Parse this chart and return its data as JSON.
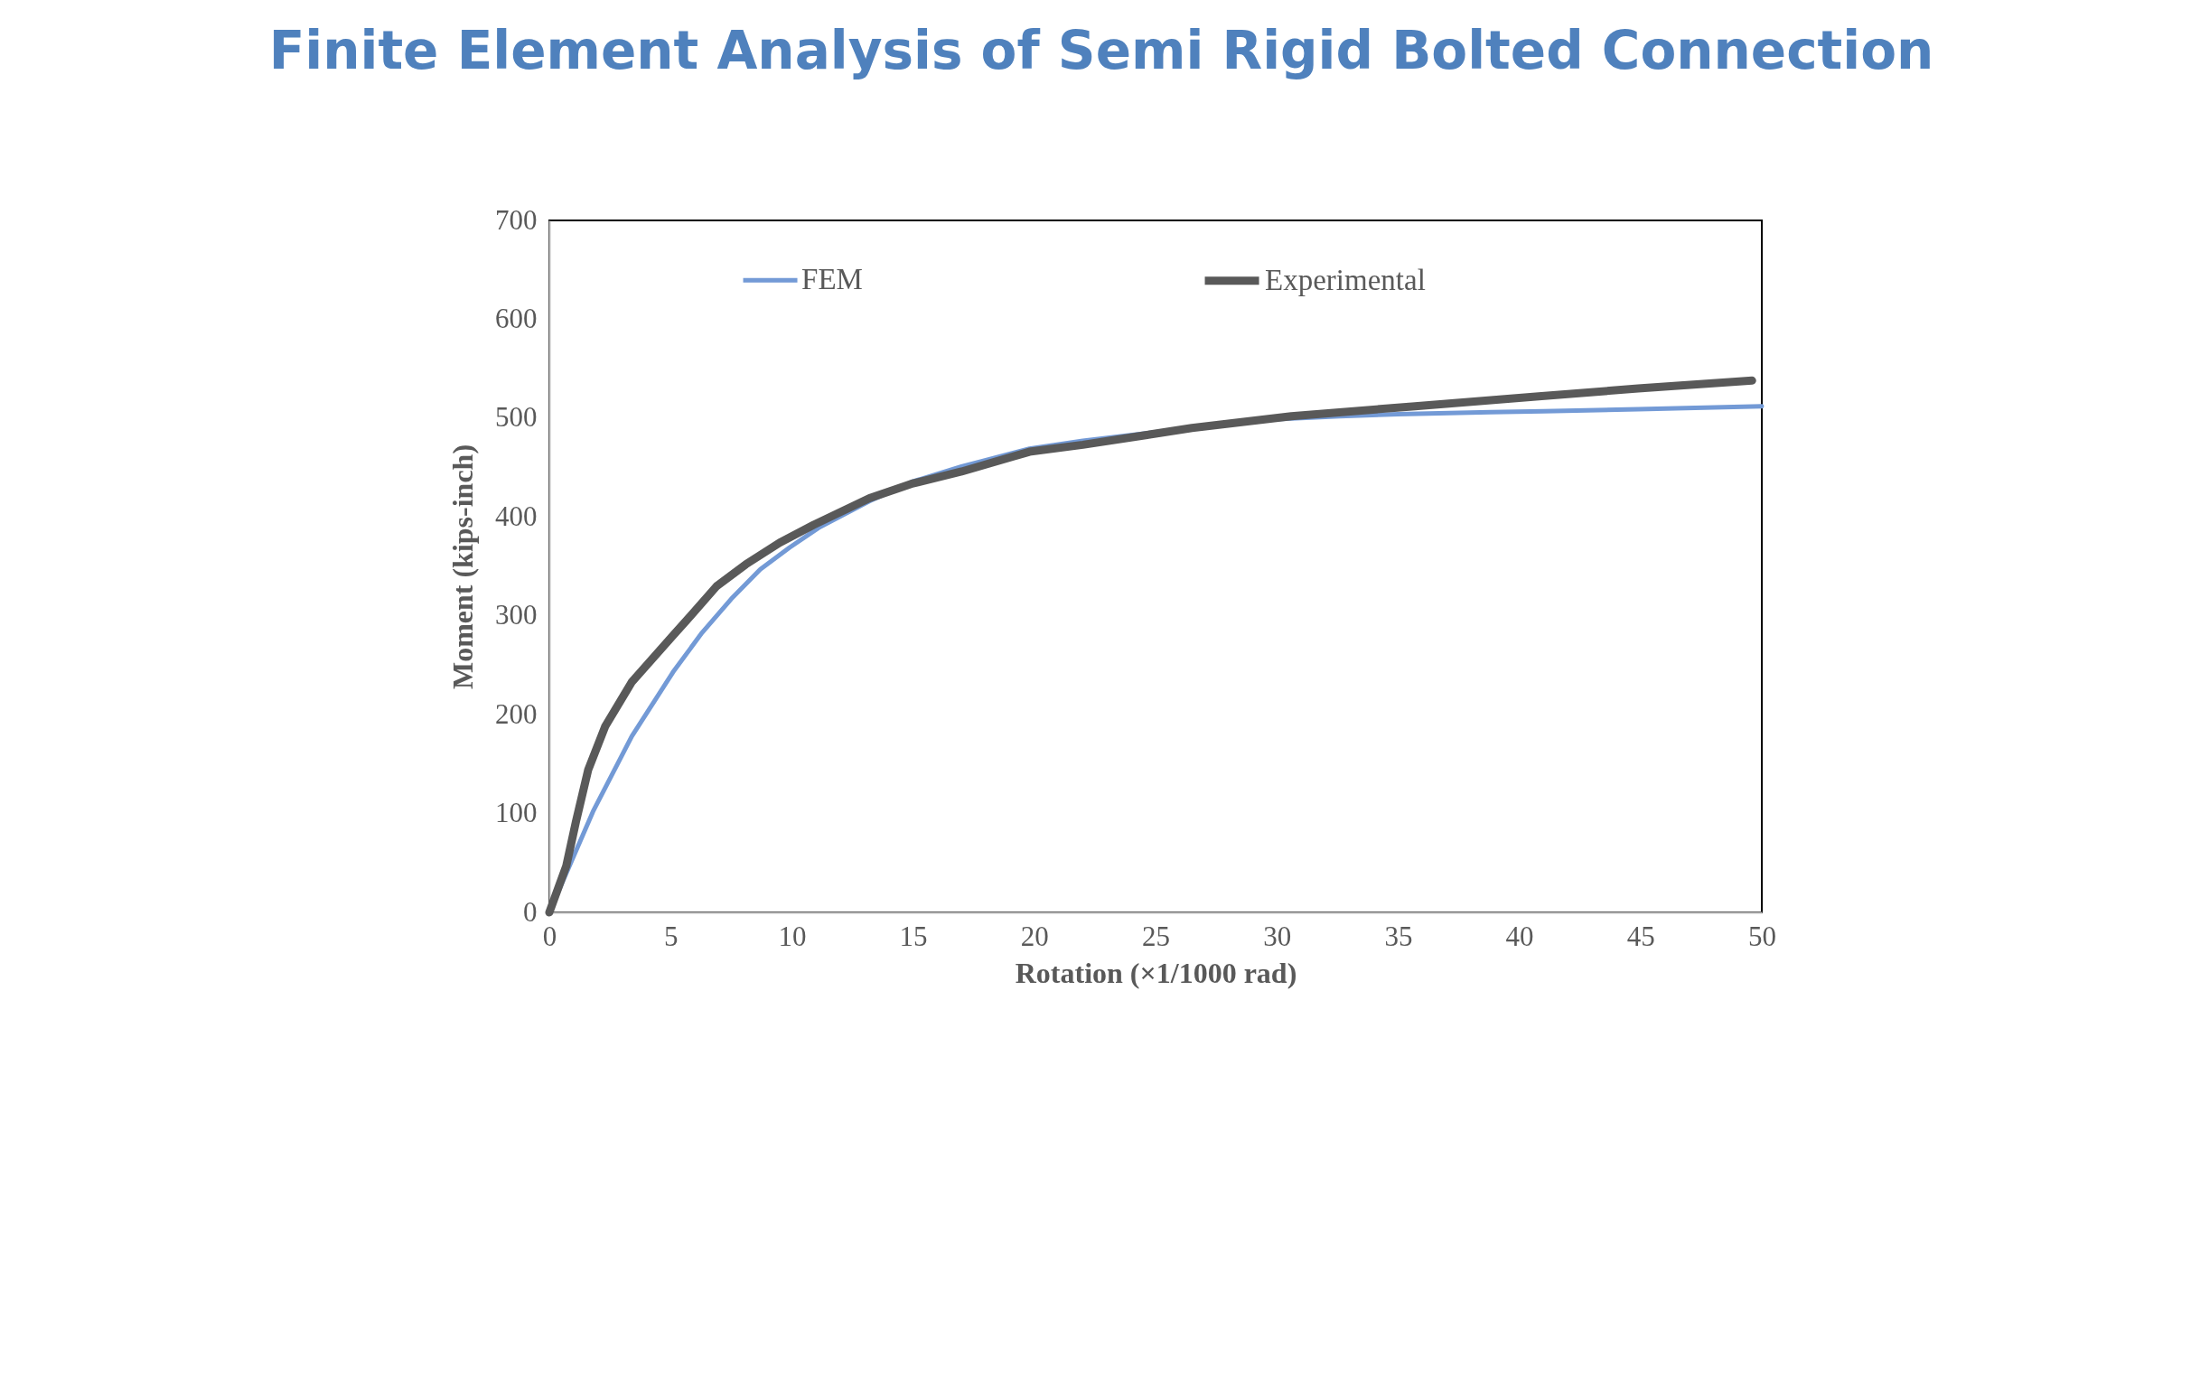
{
  "chart_data": {
    "type": "line",
    "title": "Finite Element Analysis of Semi Rigid Bolted Connection",
    "xlabel": "Rotation (×1/1000  rad)",
    "ylabel": "Moment (kips-inch)",
    "xlim": [
      0,
      50
    ],
    "xticks": [
      0,
      5,
      10,
      15,
      20,
      25,
      30,
      35,
      40,
      45,
      50
    ],
    "ylim": [
      0,
      700
    ],
    "yticks": [
      0,
      100,
      200,
      300,
      400,
      500,
      600,
      700
    ],
    "grid": false,
    "legend": "top",
    "marker": "none",
    "line_style": "solid",
    "series": [
      {
        "name": "FEM",
        "color": "#739ad6",
        "x": [
          0,
          1.8,
          3.4,
          5.1,
          6.3,
          7.5,
          8.7,
          9.9,
          11.1,
          13.2,
          15,
          17,
          19.8,
          22,
          26.5,
          30,
          32.6,
          35,
          38.8,
          41,
          44.9,
          50
        ],
        "values": [
          0,
          102,
          178,
          243,
          283,
          317,
          347,
          369,
          389,
          416,
          436,
          451,
          469,
          477,
          490,
          499,
          502,
          504,
          506,
          507,
          509,
          512
        ]
      },
      {
        "name": "Experimental",
        "color": "#595959",
        "x": [
          0,
          0.7,
          1.1,
          1.6,
          2.3,
          3.4,
          5.1,
          5.9,
          6.9,
          8.1,
          9.5,
          10.9,
          13.2,
          15,
          17,
          19.8,
          22,
          26.5,
          30.6,
          35.7,
          40.8,
          44.9,
          49.6
        ],
        "values": [
          0,
          47,
          92,
          144,
          188,
          233,
          280,
          302,
          330,
          352,
          374,
          392,
          419,
          434,
          446,
          466,
          473,
          490,
          502,
          512,
          522,
          530,
          538
        ]
      }
    ]
  }
}
